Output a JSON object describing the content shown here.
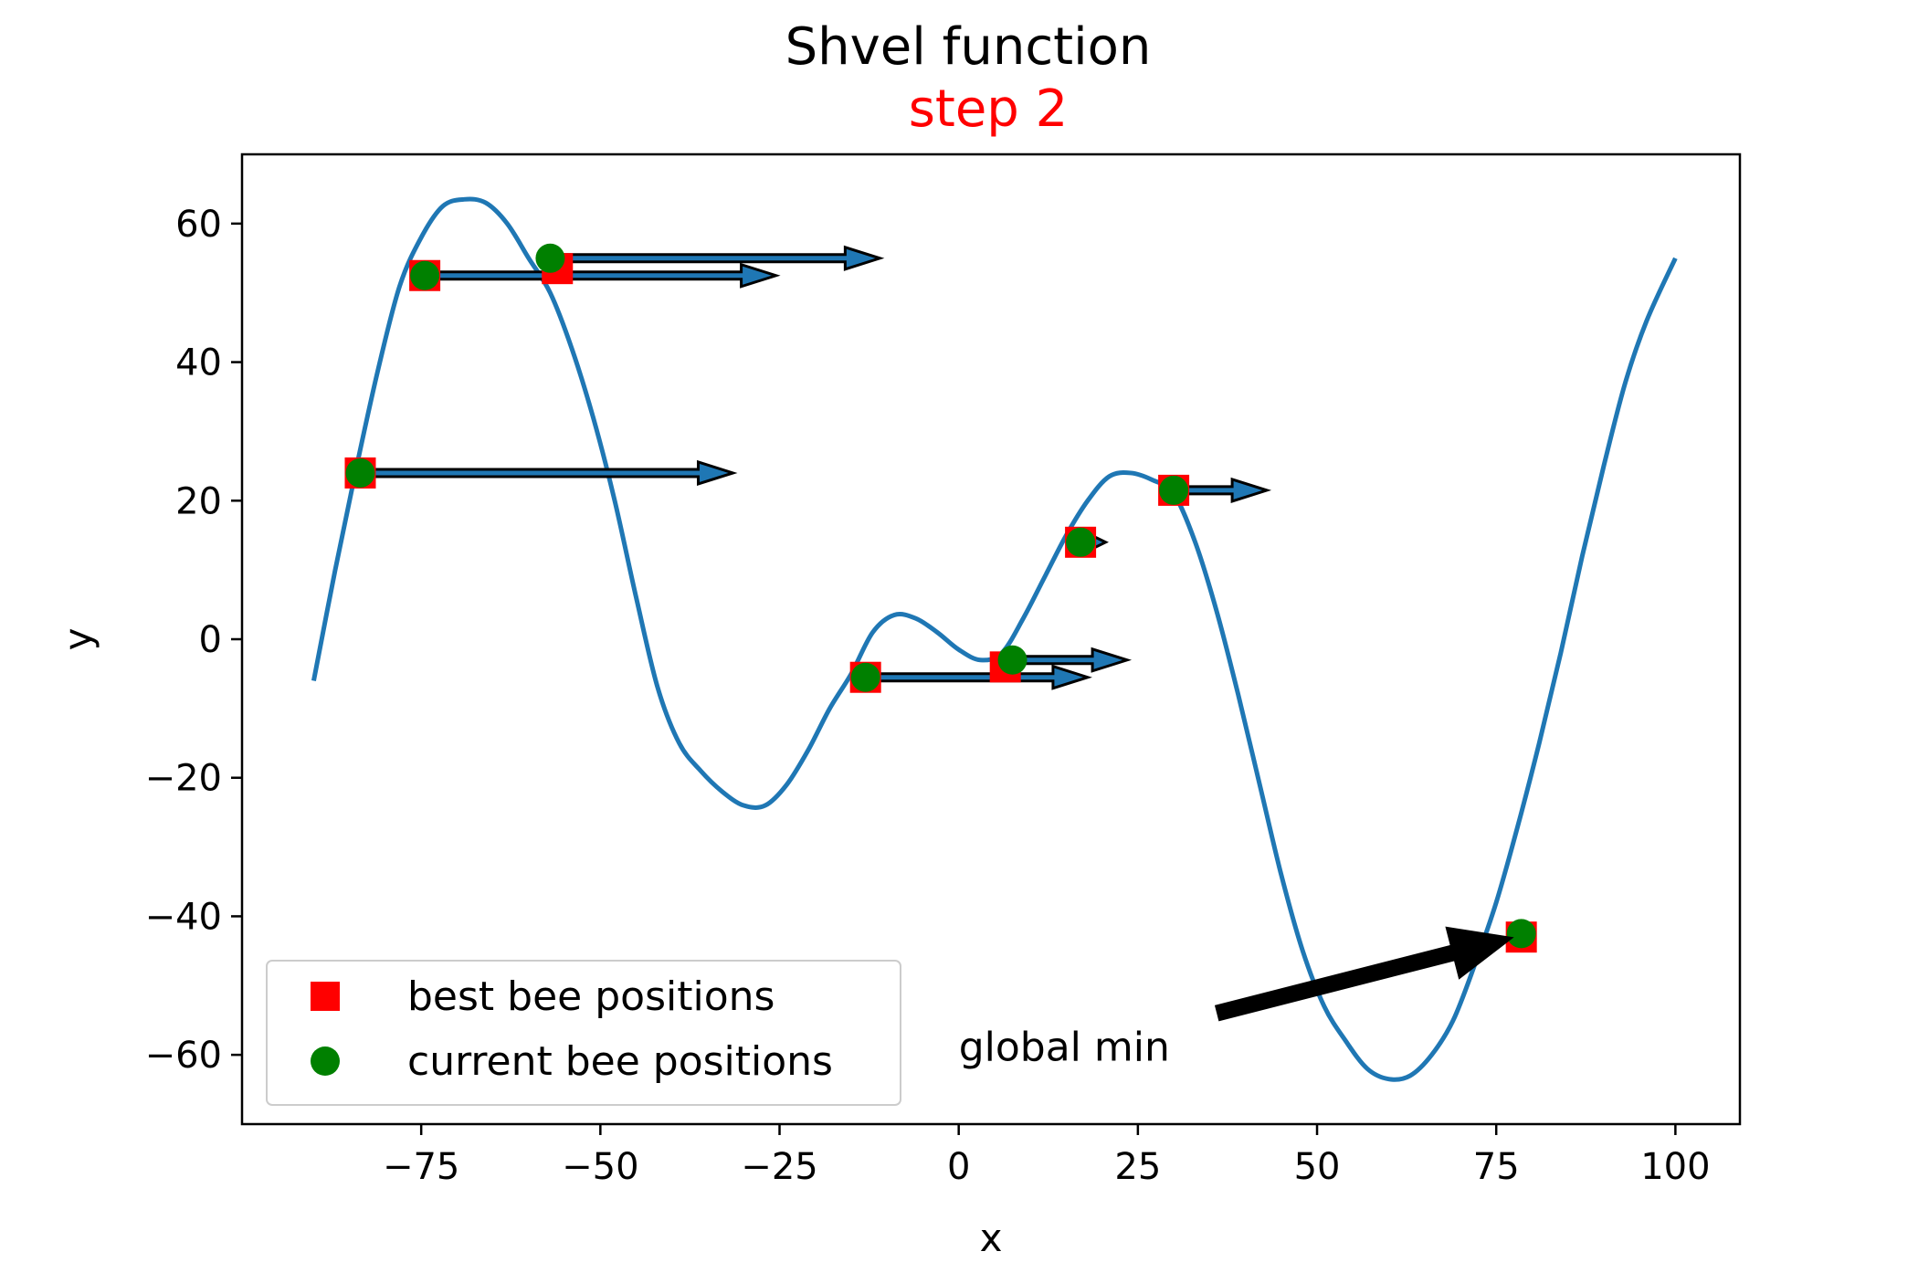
{
  "chart_data": {
    "type": "line",
    "title": "Shvel function",
    "subtitle": "step 2",
    "xlabel": "x",
    "ylabel": "y",
    "xlim": [
      -100,
      109
    ],
    "ylim": [
      -70,
      70
    ],
    "x_ticks": [
      -75,
      -50,
      -25,
      0,
      25,
      50,
      75,
      100
    ],
    "x_tick_labels": [
      "−75",
      "−50",
      "−25",
      "0",
      "25",
      "50",
      "75",
      "100"
    ],
    "y_ticks": [
      -60,
      -40,
      -20,
      0,
      20,
      40,
      60
    ],
    "y_tick_labels": [
      "−60",
      "−40",
      "−20",
      "0",
      "20",
      "40",
      "60"
    ],
    "grid": false,
    "legend_position": "lower-left",
    "colors": {
      "curve": "#1f77b4",
      "best": "#ff0000",
      "current": "#008000",
      "arrow_fill": "#1f77b4",
      "arrow_edge": "#000000",
      "subtitle": "#ff0000",
      "annotation": "#000000"
    },
    "curve": {
      "x": [
        -90,
        -87,
        -84,
        -81,
        -78,
        -75,
        -72,
        -69,
        -66,
        -63,
        -60,
        -57,
        -54,
        -51,
        -48,
        -45,
        -42,
        -39,
        -36,
        -33,
        -30,
        -27,
        -24,
        -21,
        -18,
        -15,
        -12,
        -9,
        -6,
        -3,
        0,
        3,
        6,
        9,
        12,
        15,
        18,
        21,
        24,
        27,
        30,
        33,
        36,
        39,
        42,
        45,
        48,
        51,
        54,
        57,
        60,
        63,
        66,
        69,
        72,
        75,
        78,
        81,
        84,
        87,
        90,
        93,
        96,
        100
      ],
      "y": [
        -6,
        10,
        25,
        39,
        51,
        58,
        62.5,
        63.5,
        63,
        60,
        55,
        50,
        42,
        32,
        20,
        6,
        -7,
        -15,
        -19,
        -22,
        -24,
        -24,
        -21,
        -16,
        -10,
        -5,
        1,
        3.5,
        3,
        1,
        -1.5,
        -3,
        -2,
        3,
        9,
        15,
        20,
        23.5,
        24,
        23,
        21,
        14,
        4,
        -8,
        -21,
        -34,
        -45,
        -53,
        -58,
        -62,
        -63.5,
        -63,
        -60,
        -55,
        -47,
        -38,
        -27,
        -15,
        -2,
        12,
        25,
        37,
        46,
        55
      ]
    },
    "series": [
      {
        "name": "best bee positions",
        "marker": "square",
        "x": [
          -83.5,
          -74.5,
          -56,
          -13,
          6.5,
          17,
          30,
          78.5
        ],
        "y": [
          24,
          52.5,
          53.5,
          -5.5,
          -4,
          14,
          21.5,
          -43
        ]
      },
      {
        "name": "current bee positions",
        "marker": "circle",
        "x": [
          -83.5,
          -74.5,
          -57,
          -13,
          7.5,
          17,
          30,
          78.5
        ],
        "y": [
          24,
          52.5,
          55,
          -5.5,
          -3,
          14,
          21.5,
          -42.5
        ]
      }
    ],
    "velocity_arrows": [
      {
        "x": -83.5,
        "y": 24,
        "dx": 52
      },
      {
        "x": -74.5,
        "y": 52.5,
        "dx": 49
      },
      {
        "x": -57,
        "y": 55,
        "dx": 46
      },
      {
        "x": -13,
        "y": -5.5,
        "dx": 31
      },
      {
        "x": 7.5,
        "y": -3,
        "dx": 16
      },
      {
        "x": 17,
        "y": 14,
        "dx": 3.5
      },
      {
        "x": 30,
        "y": 21.5,
        "dx": 13
      }
    ],
    "annotation": {
      "text": "global min",
      "text_x": 0,
      "text_y": -59,
      "tail_x": 36,
      "tail_y": -54,
      "head_x": 78.5,
      "head_y": -42.5
    }
  }
}
